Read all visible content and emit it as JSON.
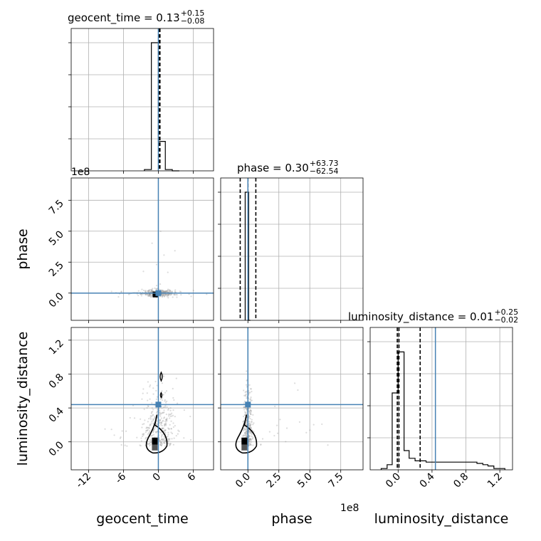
{
  "colors": {
    "truth": "#4682b4",
    "hist": "#000000",
    "grid": "#b0b0b0",
    "scatter": "#9a9a9a"
  },
  "chart_data": {
    "type": "corner",
    "parameters": [
      "geocent_time",
      "phase",
      "luminosity_distance"
    ],
    "axis_labels": [
      "geocent_time",
      "phase",
      "luminosity_distance"
    ],
    "offset_text": "1e8",
    "truths": {
      "geocent_time": 0.0,
      "phase": 0.0,
      "luminosity_distance": 0.44
    },
    "ranges": {
      "geocent_time": [
        -15,
        9.5
      ],
      "phase": [
        -220000000.0,
        930000000.0
      ],
      "luminosity_distance": [
        -0.33,
        1.35
      ]
    },
    "ticks": {
      "geocent_time": [
        "-12",
        "-6",
        "0",
        "6"
      ],
      "phase": [
        "0.0",
        "2.5",
        "5.0",
        "7.5"
      ],
      "luminosity_distance": [
        "0.0",
        "0.4",
        "0.8",
        "1.2"
      ]
    },
    "tick_values": {
      "geocent_time": [
        -12,
        -6,
        0,
        6
      ],
      "phase": [
        0,
        250000000.0,
        500000000.0,
        750000000.0
      ],
      "luminosity_distance": [
        0.0,
        0.4,
        0.8,
        1.2
      ]
    },
    "titles": [
      {
        "param": "geocent_time",
        "prefix": "geocent_time = 0.13",
        "plus": "+0.15",
        "minus": "−0.08"
      },
      {
        "param": "phase",
        "prefix": "phase = 0.30",
        "plus": "+63.73",
        "minus": "−62.54"
      },
      {
        "param": "luminosity_distance",
        "prefix": "luminosity_distance = 0.01",
        "plus": "+0.25",
        "minus": "−0.02"
      }
    ],
    "quantile_lines": {
      "geocent_time": [
        0.05,
        0.13,
        0.28
      ],
      "phase": [
        -62200000.0,
        300000.0,
        64100000.0
      ],
      "luminosity_distance": [
        -0.01,
        0.01,
        0.26
      ]
    },
    "marginals": {
      "geocent_time": {
        "edges": [
          -2.4,
          -1.2,
          0.0,
          1.2,
          2.4,
          3.6
        ],
        "counts": [
          0.01,
          1.0,
          0.23,
          0.01,
          0.0
        ]
      },
      "phase": {
        "edges": [
          -22000000.0,
          -8000000.0,
          6000000.0,
          20000000.0
        ],
        "counts": [
          1.0,
          1.0,
          0.0
        ]
      },
      "luminosity_distance": {
        "edges": [
          -0.2,
          -0.13,
          -0.07,
          0.0,
          0.07,
          0.13,
          0.2,
          0.26,
          0.33,
          0.4,
          0.46,
          0.53,
          0.6,
          0.66,
          0.73,
          0.8,
          0.86,
          0.93,
          1.0,
          1.06,
          1.13,
          1.2,
          1.26
        ],
        "counts": [
          0.01,
          0.04,
          0.6,
          0.92,
          0.15,
          0.09,
          0.07,
          0.07,
          0.06,
          0.06,
          0.06,
          0.06,
          0.06,
          0.06,
          0.06,
          0.06,
          0.06,
          0.05,
          0.04,
          0.03,
          0.01,
          0.01
        ]
      }
    }
  }
}
